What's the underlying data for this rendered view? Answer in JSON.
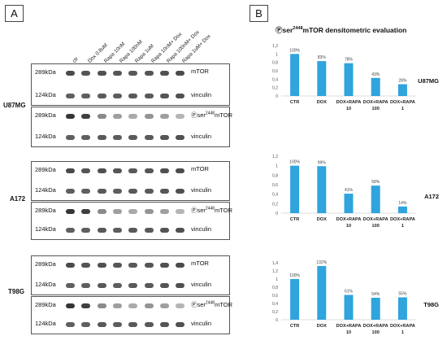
{
  "panels": {
    "a": "A",
    "b": "B"
  },
  "lanes": [
    "ctr",
    "Dox 0.8uM",
    "Rapa 10nM",
    "Rapa 100nM",
    "Rapa 1uM",
    "Rapa 10nM+ Dox",
    "Rapa 100nM+ Dox",
    "Rapa 1uM+ Dox"
  ],
  "kda": {
    "high": "289kDa",
    "low": "124kDa"
  },
  "proteins": {
    "mtor": "mTOR",
    "vinculin": "vinculin",
    "phospho_prefix": "Ⓟser",
    "phospho_sup": "2448",
    "phospho_suffix": "mTOR"
  },
  "cell_lines": [
    "U87MG",
    "A172",
    "T98G"
  ],
  "chart_title": {
    "prefix": "Ⓟser",
    "sup": "2448",
    "suffix": "mTOR densitometric evaluation"
  },
  "chart_data": [
    {
      "type": "bar",
      "cell_line": "U87MG",
      "categories": [
        "CTR",
        "DOX",
        "DOX+RAPA\n10",
        "DOX+RAPA\n100",
        "DOX+RAPA\n1"
      ],
      "values": [
        1.0,
        0.83,
        0.78,
        0.43,
        0.28
      ],
      "data_labels": [
        "100%",
        "83%",
        "78%",
        "43%",
        "28%"
      ],
      "ylim": [
        0,
        1.2
      ],
      "yticks": [
        "0",
        "0,2",
        "0,4",
        "0,6",
        "0,8",
        "1",
        "1,2"
      ],
      "color": "#2fa4dd"
    },
    {
      "type": "bar",
      "cell_line": "A172",
      "categories": [
        "CTR",
        "DOX",
        "DOX+RAPA\n10",
        "DOX+RAPA\n100",
        "DOX+RAPA\n1"
      ],
      "values": [
        1.0,
        0.99,
        0.41,
        0.58,
        0.14
      ],
      "data_labels": [
        "100%",
        "99%",
        "41%",
        "58%",
        "14%"
      ],
      "ylim": [
        0,
        1.2
      ],
      "yticks": [
        "0",
        "0,2",
        "0,4",
        "0,6",
        "0,8",
        "1",
        "1,2"
      ],
      "color": "#2fa4dd"
    },
    {
      "type": "bar",
      "cell_line": "T98G",
      "categories": [
        "CTR",
        "DOX",
        "DOX+RAPA\n10",
        "DOX+RAPA\n100",
        "DOX+RAPA\n1"
      ],
      "values": [
        1.0,
        1.32,
        0.61,
        0.54,
        0.55
      ],
      "data_labels": [
        "100%",
        "132%",
        "61%",
        "54%",
        "55%"
      ],
      "ylim": [
        0,
        1.4
      ],
      "yticks": [
        "0",
        "0,2",
        "0,4",
        "0,6",
        "0,8",
        "1",
        "1,2",
        "1,4"
      ],
      "color": "#2fa4dd"
    }
  ]
}
